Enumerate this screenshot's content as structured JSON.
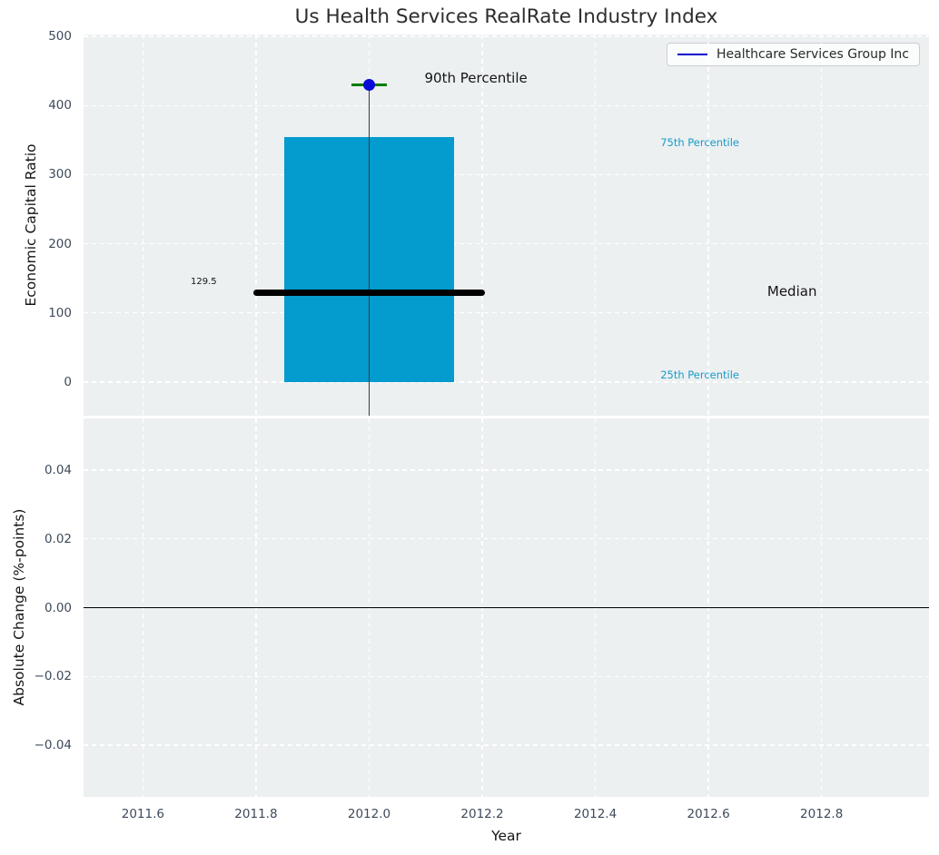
{
  "figure": {
    "title": "Us Health Services RealRate Industry Index",
    "xlabel": "Year",
    "legend": {
      "label": "Healthcare Services Group Inc"
    }
  },
  "colors": {
    "axes_background": "#ecf0f1",
    "grid": "#ffffff",
    "box_fill": "#049bce",
    "median_line": "#000000",
    "whisker": "#3c3c3c",
    "marker_90th": "#0a0ad6",
    "cap_90th": "#007d00",
    "legend_line": "#0000cc",
    "zero_line": "#000000",
    "tick_label": "#3e4a5a",
    "axis_label": "#141414",
    "title": "#2d2d2d",
    "percentile_label": "#199bc9"
  },
  "chart_data": [
    {
      "type": "box",
      "title": "Us Health Services RealRate Industry Index",
      "ylabel": "Economic Capital Ratio",
      "xlabel": "Year",
      "grid": true,
      "legend_position": "upper right",
      "series_label": "Healthcare Services Group Inc",
      "xlim": [
        2011.495,
        2012.99
      ],
      "ylim": [
        -48.6,
        502.6
      ],
      "xticks": [
        2011.6,
        2011.8,
        2012.0,
        2012.2,
        2012.4,
        2012.6,
        2012.8
      ],
      "xtick_labels": [
        "2011.6",
        "2011.8",
        "2012.0",
        "2012.2",
        "2012.4",
        "2012.6",
        "2012.8"
      ],
      "yticks": [
        0,
        100,
        200,
        300,
        400,
        500
      ],
      "ytick_labels": [
        "0",
        "100",
        "200",
        "300",
        "400",
        "500"
      ],
      "box": {
        "center_x": 2012.0,
        "left": 2011.85,
        "right": 2012.15,
        "q25": 0,
        "median": 129.5,
        "q75": 354,
        "p90": 430,
        "median_label": "129.5",
        "median_line_left": 2011.8,
        "median_line_right": 2012.2,
        "cap_left": 2011.968,
        "cap_right": 2012.032,
        "whisker_bottom_clipped": true
      },
      "annotations": [
        {
          "text": "90th Percentile",
          "x": 2012.098,
          "y": 439,
          "ha": "left",
          "size": 15,
          "color_key": "axis_label"
        },
        {
          "text": "129.5",
          "x": 2011.7075,
          "y": 144,
          "ha": "center",
          "size": 10,
          "color_key": "axis_label"
        },
        {
          "text": "75th Percentile",
          "x": 2012.515,
          "y": 345,
          "ha": "left",
          "size": 11.5,
          "color_key": "percentile_label"
        },
        {
          "text": "Median",
          "x": 2012.704,
          "y": 130,
          "ha": "left",
          "size": 15,
          "color_key": "axis_label"
        },
        {
          "text": "25th Percentile",
          "x": 2012.515,
          "y": 10,
          "ha": "left",
          "size": 11.5,
          "color_key": "percentile_label"
        }
      ]
    },
    {
      "type": "line",
      "ylabel": "Absolute Change (%-points)",
      "xlabel": "Year",
      "grid": true,
      "ylim": [
        -0.0551,
        0.0551
      ],
      "yticks": [
        0.04,
        0.02,
        0.0,
        -0.02,
        -0.04
      ],
      "ytick_labels": [
        "0.04",
        "0.02",
        "0.00",
        "−0.02",
        "−0.04"
      ],
      "zero_line": 0.0,
      "values": []
    }
  ]
}
